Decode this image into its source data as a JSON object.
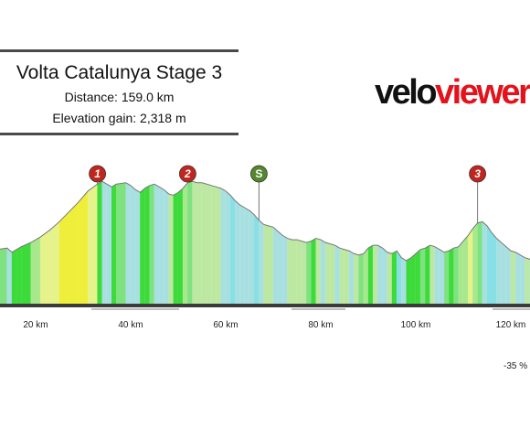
{
  "header": {
    "title": "Volta Catalunya Stage 3",
    "distance": "Distance: 159.0 km",
    "elevation_gain": "Elevation gain: 2,318 m"
  },
  "logo": {
    "part1": "velo",
    "part2": "viewer"
  },
  "chart_data": {
    "type": "area",
    "title": "Volta Catalunya Stage 3",
    "xlabel": "",
    "ylabel": "",
    "xlim": [
      12,
      143
    ],
    "ylim": [
      0,
      100
    ],
    "x_ticks": [
      {
        "x": 20,
        "label": "20 km"
      },
      {
        "x": 40,
        "label": "40 km"
      },
      {
        "x": 60,
        "label": "60 km"
      },
      {
        "x": 80,
        "label": "80 km"
      },
      {
        "x": 100,
        "label": "100 km"
      },
      {
        "x": 120,
        "label": "120 km"
      }
    ],
    "gradient_legend_label": "-35 %",
    "profile": [
      [
        12,
        39
      ],
      [
        14,
        40
      ],
      [
        15,
        37
      ],
      [
        16,
        39
      ],
      [
        17,
        41
      ],
      [
        19,
        44
      ],
      [
        21,
        48
      ],
      [
        23,
        53
      ],
      [
        25,
        59
      ],
      [
        27,
        66
      ],
      [
        29,
        73
      ],
      [
        31,
        81
      ],
      [
        33,
        86
      ],
      [
        34,
        88
      ],
      [
        35,
        86
      ],
      [
        36,
        84
      ],
      [
        37,
        86
      ],
      [
        39,
        87
      ],
      [
        40,
        85
      ],
      [
        41,
        82
      ],
      [
        42,
        80
      ],
      [
        43,
        83
      ],
      [
        44,
        85
      ],
      [
        45,
        86
      ],
      [
        46,
        84
      ],
      [
        47,
        82
      ],
      [
        48,
        79
      ],
      [
        49,
        78
      ],
      [
        50,
        80
      ],
      [
        51,
        83
      ],
      [
        52,
        87
      ],
      [
        53,
        88
      ],
      [
        54,
        87
      ],
      [
        55,
        87
      ],
      [
        56,
        86
      ],
      [
        57,
        85
      ],
      [
        58,
        84
      ],
      [
        59,
        83
      ],
      [
        60,
        81
      ],
      [
        61,
        78
      ],
      [
        62,
        74
      ],
      [
        63,
        71
      ],
      [
        64,
        69
      ],
      [
        65,
        67
      ],
      [
        66,
        64
      ],
      [
        67,
        60
      ],
      [
        68,
        57
      ],
      [
        69,
        56
      ],
      [
        70,
        55
      ],
      [
        71,
        52
      ],
      [
        72,
        49
      ],
      [
        73,
        47
      ],
      [
        74,
        46
      ],
      [
        75,
        46
      ],
      [
        76,
        45
      ],
      [
        77,
        44
      ],
      [
        78,
        45
      ],
      [
        79,
        47
      ],
      [
        80,
        46
      ],
      [
        81,
        44
      ],
      [
        82,
        43
      ],
      [
        83,
        42
      ],
      [
        84,
        40
      ],
      [
        85,
        39
      ],
      [
        86,
        38
      ],
      [
        87,
        36
      ],
      [
        88,
        35
      ],
      [
        89,
        36
      ],
      [
        90,
        40
      ],
      [
        91,
        42
      ],
      [
        92,
        42
      ],
      [
        93,
        40
      ],
      [
        94,
        37
      ],
      [
        95,
        36
      ],
      [
        96,
        38
      ],
      [
        97,
        33
      ],
      [
        98,
        31
      ],
      [
        99,
        33
      ],
      [
        100,
        36
      ],
      [
        101,
        39
      ],
      [
        102,
        40
      ],
      [
        103,
        42
      ],
      [
        104,
        41
      ],
      [
        105,
        39
      ],
      [
        106,
        37
      ],
      [
        107,
        38
      ],
      [
        108,
        40
      ],
      [
        109,
        41
      ],
      [
        110,
        45
      ],
      [
        111,
        49
      ],
      [
        112,
        54
      ],
      [
        113,
        58
      ],
      [
        114,
        59
      ],
      [
        115,
        56
      ],
      [
        116,
        51
      ],
      [
        117,
        47
      ],
      [
        118,
        44
      ],
      [
        119,
        41
      ],
      [
        120,
        38
      ],
      [
        121,
        37
      ],
      [
        122,
        35
      ],
      [
        123,
        33
      ],
      [
        124,
        32
      ],
      [
        125,
        30
      ],
      [
        126,
        29
      ],
      [
        127,
        28
      ],
      [
        128,
        27
      ],
      [
        129,
        28
      ],
      [
        130,
        27
      ],
      [
        131,
        28
      ],
      [
        132,
        29
      ],
      [
        133,
        28
      ],
      [
        134,
        27
      ],
      [
        135,
        27
      ],
      [
        136,
        29
      ],
      [
        137,
        29
      ],
      [
        138,
        29
      ],
      [
        139,
        29
      ],
      [
        140,
        29
      ],
      [
        141,
        29
      ],
      [
        142,
        29
      ],
      [
        143,
        29
      ]
    ],
    "markers": [
      {
        "x": 33,
        "label": "1",
        "kind": "climb",
        "color": "#c0261e"
      },
      {
        "x": 52,
        "label": "2",
        "kind": "climb",
        "color": "#c0261e"
      },
      {
        "x": 67,
        "label": "S",
        "kind": "sprint",
        "color": "#54872f"
      },
      {
        "x": 113,
        "label": "3",
        "kind": "climb",
        "color": "#c0261e"
      }
    ]
  }
}
